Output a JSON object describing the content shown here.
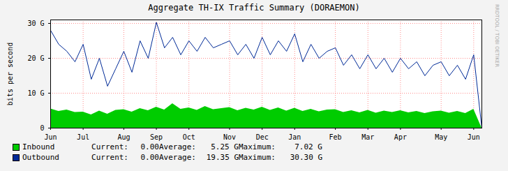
{
  "chart_data": {
    "type": "line",
    "title": "Aggregate TH-IX Traffic Summary (DORAEMON)",
    "y_label": "bits per second",
    "side_text": "RRDTOOL / TOBI OETIKER",
    "categories": [
      "Jun",
      null,
      null,
      null,
      "Jul",
      null,
      null,
      null,
      null,
      "Aug",
      null,
      null,
      null,
      "Sep",
      null,
      null,
      null,
      "Oct",
      null,
      null,
      null,
      null,
      "Nov",
      null,
      null,
      null,
      "Dec",
      null,
      null,
      null,
      "Jan",
      null,
      null,
      null,
      null,
      "Feb",
      null,
      null,
      null,
      "Mar",
      null,
      null,
      null,
      "Apr",
      null,
      null,
      null,
      null,
      "May",
      null,
      null,
      null,
      "Jun",
      null
    ],
    "series": [
      {
        "name": "Inbound",
        "type": "area",
        "color": "#00cc00",
        "values": [
          5.5,
          4.8,
          5.2,
          4.5,
          4.6,
          3.8,
          4.9,
          4.0,
          5.1,
          5.3,
          4.6,
          5.6,
          5.0,
          6.0,
          5.2,
          7.02,
          5.4,
          5.8,
          5.1,
          6.2,
          5.3,
          5.6,
          5.9,
          5.0,
          5.7,
          5.2,
          6.0,
          5.1,
          5.8,
          4.9,
          5.7,
          4.8,
          5.4,
          4.7,
          5.2,
          5.3,
          4.5,
          5.0,
          4.4,
          5.1,
          4.3,
          4.9,
          4.5,
          5.0,
          4.4,
          4.8,
          4.2,
          4.7,
          4.9,
          4.3,
          4.8,
          4.2,
          5.4,
          0
        ],
        "stats": [
          "0.00",
          "5.25 G",
          "7.02 G"
        ]
      },
      {
        "name": "Outbound",
        "type": "line",
        "color": "#002a97",
        "values": [
          28,
          24,
          22,
          19,
          24,
          14,
          20,
          12,
          17,
          22,
          16,
          25,
          20,
          30.3,
          23,
          26,
          21,
          25,
          22,
          26,
          23,
          24,
          25,
          21,
          24,
          20,
          26,
          21,
          25,
          22,
          27,
          19,
          24,
          20,
          22,
          23,
          18,
          21,
          17,
          21,
          17,
          20,
          16,
          20,
          17,
          19,
          15,
          18,
          19,
          15,
          18,
          14,
          21,
          0
        ],
        "stats": [
          "0.00",
          "19.35 G",
          "30.30 G"
        ]
      }
    ],
    "stat_labels": [
      "Current:",
      "Average:",
      "Maximum:"
    ],
    "ylim": [
      0,
      31
    ],
    "yticks": [
      0,
      {
        "value": 10,
        "label": "10 G"
      },
      {
        "value": 20,
        "label": "20 G"
      },
      {
        "value": 30,
        "label": "30 G"
      }
    ],
    "grid": true,
    "legend": "bottom"
  }
}
